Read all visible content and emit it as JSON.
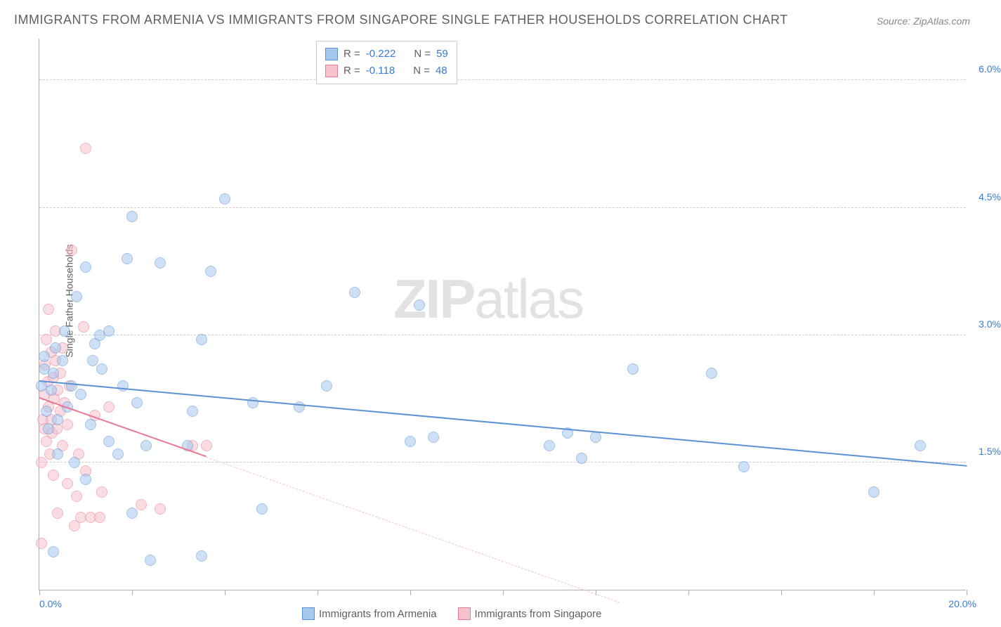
{
  "title": "IMMIGRANTS FROM ARMENIA VS IMMIGRANTS FROM SINGAPORE SINGLE FATHER HOUSEHOLDS CORRELATION CHART",
  "source": "Source: ZipAtlas.com",
  "y_axis_label": "Single Father Households",
  "watermark_bold": "ZIP",
  "watermark_light": "atlas",
  "chart": {
    "type": "scatter",
    "xlim": [
      0,
      20
    ],
    "ylim": [
      0,
      6.5
    ],
    "x_tick_positions": [
      0,
      2,
      4,
      6,
      8,
      10,
      12,
      14,
      16,
      18,
      20
    ],
    "x_tick_labels_shown": {
      "min": "0.0%",
      "max": "20.0%"
    },
    "y_grid_positions": [
      1.5,
      3.0,
      4.5,
      6.0
    ],
    "y_grid_labels": [
      "1.5%",
      "3.0%",
      "4.5%",
      "6.0%"
    ],
    "background_color": "#ffffff",
    "grid_color": "#cccccc",
    "axis_color": "#b0b0b0",
    "tick_label_color": "#3a7bd5",
    "marker_radius": 8,
    "marker_opacity": 0.55
  },
  "series": [
    {
      "name": "Immigrants from Armenia",
      "fill_color": "#a6c7ee",
      "stroke_color": "#5b92d4",
      "r_label": "R =",
      "r_value": "-0.222",
      "n_label": "N =",
      "n_value": "59",
      "trend": {
        "x0": 0,
        "y0": 2.45,
        "x1": 20,
        "y1": 1.45,
        "solid_until_x": 20
      },
      "points": [
        [
          0.05,
          2.4
        ],
        [
          0.1,
          2.6
        ],
        [
          0.1,
          2.75
        ],
        [
          0.15,
          2.1
        ],
        [
          0.2,
          1.9
        ],
        [
          0.25,
          2.35
        ],
        [
          0.3,
          2.55
        ],
        [
          0.3,
          0.45
        ],
        [
          0.35,
          2.85
        ],
        [
          0.4,
          2.0
        ],
        [
          0.4,
          1.6
        ],
        [
          0.5,
          2.7
        ],
        [
          0.55,
          3.05
        ],
        [
          0.6,
          2.15
        ],
        [
          0.7,
          2.4
        ],
        [
          0.75,
          1.5
        ],
        [
          0.8,
          3.45
        ],
        [
          0.9,
          2.3
        ],
        [
          1.0,
          3.8
        ],
        [
          1.0,
          1.3
        ],
        [
          1.1,
          1.95
        ],
        [
          1.15,
          2.7
        ],
        [
          1.2,
          2.9
        ],
        [
          1.3,
          3.0
        ],
        [
          1.35,
          2.6
        ],
        [
          1.5,
          1.75
        ],
        [
          1.5,
          3.05
        ],
        [
          1.7,
          1.6
        ],
        [
          1.8,
          2.4
        ],
        [
          1.9,
          3.9
        ],
        [
          2.0,
          4.4
        ],
        [
          2.0,
          0.9
        ],
        [
          2.1,
          2.2
        ],
        [
          2.3,
          1.7
        ],
        [
          2.4,
          0.35
        ],
        [
          2.6,
          3.85
        ],
        [
          3.2,
          1.7
        ],
        [
          3.3,
          2.1
        ],
        [
          3.5,
          2.95
        ],
        [
          3.5,
          0.4
        ],
        [
          3.7,
          3.75
        ],
        [
          4.0,
          4.6
        ],
        [
          4.6,
          2.2
        ],
        [
          4.8,
          0.95
        ],
        [
          5.6,
          2.15
        ],
        [
          6.2,
          2.4
        ],
        [
          6.8,
          3.5
        ],
        [
          8.0,
          1.75
        ],
        [
          8.2,
          3.35
        ],
        [
          8.5,
          1.8
        ],
        [
          11.0,
          1.7
        ],
        [
          11.4,
          1.85
        ],
        [
          11.7,
          1.55
        ],
        [
          12.0,
          1.8
        ],
        [
          12.8,
          2.6
        ],
        [
          14.5,
          2.55
        ],
        [
          15.2,
          1.45
        ],
        [
          18.0,
          1.15
        ],
        [
          19.0,
          1.7
        ]
      ]
    },
    {
      "name": "Immigrants from Singapore",
      "fill_color": "#f6c2cd",
      "stroke_color": "#e77a93",
      "r_label": "R =",
      "r_value": "-0.118",
      "n_label": "N =",
      "n_value": "48",
      "trend": {
        "x0": 0,
        "y0": 2.25,
        "x1": 12.5,
        "y1": -0.15,
        "solid_until_x": 3.6
      },
      "points": [
        [
          0.05,
          0.55
        ],
        [
          0.05,
          1.5
        ],
        [
          0.08,
          2.0
        ],
        [
          0.1,
          1.9
        ],
        [
          0.1,
          2.3
        ],
        [
          0.12,
          2.65
        ],
        [
          0.15,
          2.95
        ],
        [
          0.15,
          1.75
        ],
        [
          0.18,
          2.45
        ],
        [
          0.2,
          2.15
        ],
        [
          0.2,
          3.3
        ],
        [
          0.22,
          1.6
        ],
        [
          0.25,
          2.0
        ],
        [
          0.25,
          2.8
        ],
        [
          0.28,
          1.85
        ],
        [
          0.3,
          2.5
        ],
        [
          0.3,
          1.35
        ],
        [
          0.32,
          2.25
        ],
        [
          0.35,
          2.7
        ],
        [
          0.35,
          3.05
        ],
        [
          0.38,
          1.9
        ],
        [
          0.4,
          2.35
        ],
        [
          0.4,
          0.9
        ],
        [
          0.45,
          2.1
        ],
        [
          0.45,
          2.55
        ],
        [
          0.5,
          1.7
        ],
        [
          0.5,
          2.85
        ],
        [
          0.55,
          2.2
        ],
        [
          0.6,
          1.95
        ],
        [
          0.6,
          1.25
        ],
        [
          0.65,
          2.4
        ],
        [
          0.7,
          4.0
        ],
        [
          0.75,
          0.75
        ],
        [
          0.8,
          1.1
        ],
        [
          0.85,
          1.6
        ],
        [
          0.9,
          0.85
        ],
        [
          0.95,
          3.1
        ],
        [
          1.0,
          5.2
        ],
        [
          1.0,
          1.4
        ],
        [
          1.1,
          0.85
        ],
        [
          1.2,
          2.05
        ],
        [
          1.3,
          0.85
        ],
        [
          1.35,
          1.15
        ],
        [
          1.5,
          2.15
        ],
        [
          2.2,
          1.0
        ],
        [
          2.6,
          0.95
        ],
        [
          3.3,
          1.7
        ],
        [
          3.6,
          1.7
        ]
      ]
    }
  ]
}
